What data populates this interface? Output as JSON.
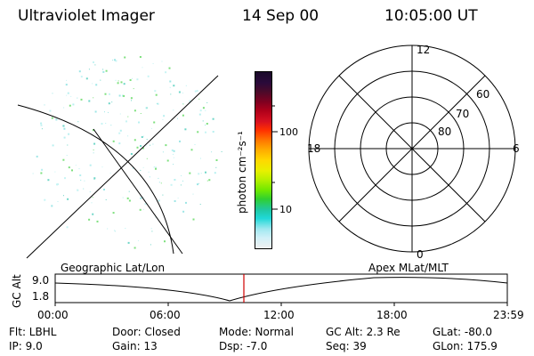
{
  "header": {
    "instrument": "Ultraviolet Imager",
    "date": "14 Sep 00",
    "time": "10:05:00 UT"
  },
  "left_panel": {
    "caption": "Geographic Lat/Lon"
  },
  "colorbar": {
    "unit_label": "photon cm⁻²s⁻¹",
    "ticks": [
      "100",
      "10"
    ],
    "colors": [
      "#1a0a2a",
      "#2a0a3a",
      "#4a0a2a",
      "#800020",
      "#b0001a",
      "#d81020",
      "#ff3000",
      "#ff7a00",
      "#ffaa00",
      "#ffd800",
      "#e8f000",
      "#b8f000",
      "#70e800",
      "#30d030",
      "#20c8a0",
      "#20d8d8",
      "#a0e8f0",
      "#d0f0f8",
      "#f0f0f0"
    ]
  },
  "right_panel": {
    "caption": "Apex  MLat/MLT",
    "mlt_labels": [
      "12",
      "18",
      "6",
      "0"
    ],
    "lat_labels": [
      "60",
      "70",
      "80"
    ]
  },
  "altitude_plot": {
    "ylabel": "GC Alt",
    "yticks": [
      "9.0",
      "1.8"
    ],
    "xticks": [
      "00:00",
      "06:00",
      "12:00",
      "18:00",
      "23:59"
    ],
    "current_time_marker": "10:05"
  },
  "footer": {
    "flt": "Flt: LBHL",
    "ip": "IP:  9.0",
    "door": "Door: Closed",
    "gain": "Gain: 13",
    "mode": "Mode: Normal",
    "dsp": "Dsp:     -7.0",
    "gcalt": "GC Alt: 2.3 Re",
    "seq": "Seq: 39",
    "glat": "GLat:  -80.0",
    "glon": "GLon: 175.9"
  }
}
